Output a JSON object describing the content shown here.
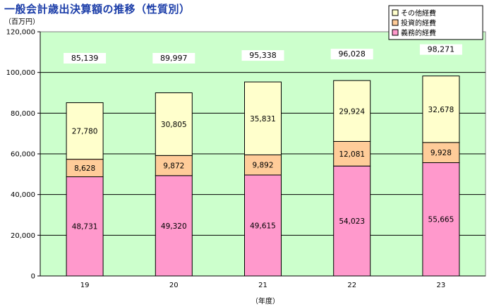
{
  "chart_data": {
    "type": "bar",
    "stacked": true,
    "title": "一般会計歳出決算額の推移（性質別）",
    "unit_label": "（百万円）",
    "xunit_label": "（年度）",
    "categories": [
      "19",
      "20",
      "21",
      "22",
      "23"
    ],
    "series": [
      {
        "name": "義務的経費",
        "color": "#ff99cc",
        "values": [
          48731,
          49320,
          49615,
          54023,
          55665
        ],
        "labels": [
          "48,731",
          "49,320",
          "49,615",
          "54,023",
          "55,665"
        ]
      },
      {
        "name": "投資的経費",
        "color": "#ffcc99",
        "values": [
          8628,
          9872,
          9892,
          12081,
          9928
        ],
        "labels": [
          "8,628",
          "9,872",
          "9,892",
          "12,081",
          "9,928"
        ]
      },
      {
        "name": "その他経費",
        "color": "#ffffcc",
        "values": [
          27780,
          30805,
          35831,
          29924,
          32678
        ],
        "labels": [
          "27,780",
          "30,805",
          "35,831",
          "29,924",
          "32,678"
        ]
      }
    ],
    "totals": [
      "85,139",
      "89,997",
      "95,338",
      "96,028",
      "98,271"
    ],
    "ylim": [
      0,
      120000
    ],
    "yticks": [
      0,
      20000,
      40000,
      60000,
      80000,
      100000,
      120000
    ],
    "ytick_labels": [
      "0",
      "20,000",
      "40,000",
      "60,000",
      "80,000",
      "100,000",
      "120,000"
    ],
    "legend_placement": "top-right",
    "legend_order": [
      "その他経費",
      "投資的経費",
      "義務的経費"
    ],
    "plot_background": "#ccffcc",
    "grid": true
  }
}
